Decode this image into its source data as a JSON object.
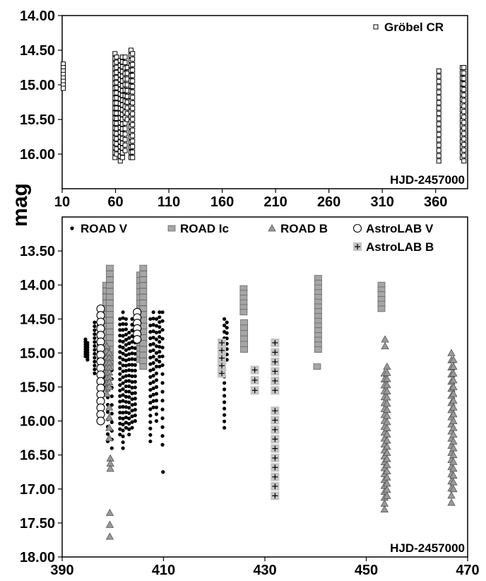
{
  "ylabel": "mag",
  "chart_data": [
    {
      "type": "scatter",
      "xlabel": "HJD-2457000",
      "xlim": [
        10,
        390
      ],
      "ylim": [
        14.0,
        16.5
      ],
      "y_inverted": true,
      "xticks": [
        "10",
        "60",
        "110",
        "160",
        "210",
        "260",
        "310",
        "360"
      ],
      "yticks": [
        "14.00",
        "14.50",
        "15.00",
        "15.50",
        "16.00"
      ],
      "legend_position": "top-right",
      "series": [
        {
          "name": "Gröbel CR",
          "marker": "open-square",
          "color": "#000000",
          "groups": [
            {
              "x": 11,
              "y_from": 14.7,
              "y_to": 15.05,
              "n": 8
            },
            {
              "x": 59.5,
              "y_from": 14.55,
              "y_to": 16.05,
              "n": 22
            },
            {
              "x": 61,
              "y_from": 14.6,
              "y_to": 16.0,
              "n": 20
            },
            {
              "x": 64.5,
              "y_from": 14.65,
              "y_to": 16.1,
              "n": 22
            },
            {
              "x": 66.5,
              "y_from": 14.6,
              "y_to": 16.05,
              "n": 22
            },
            {
              "x": 69,
              "y_from": 14.6,
              "y_to": 15.95,
              "n": 18
            },
            {
              "x": 71,
              "y_from": 14.75,
              "y_to": 15.5,
              "n": 10
            },
            {
              "x": 74.5,
              "y_from": 14.5,
              "y_to": 16.05,
              "n": 22
            },
            {
              "x": 76,
              "y_from": 14.55,
              "y_to": 16.05,
              "n": 20
            },
            {
              "x": 363,
              "y_from": 14.8,
              "y_to": 16.1,
              "n": 18
            },
            {
              "x": 385,
              "y_from": 14.75,
              "y_to": 16.05,
              "n": 18
            },
            {
              "x": 386.5,
              "y_from": 14.75,
              "y_to": 16.1,
              "n": 18
            }
          ]
        }
      ]
    },
    {
      "type": "scatter",
      "xlabel": "HJD-2457000",
      "xlim": [
        390,
        470
      ],
      "ylim": [
        13.0,
        18.0
      ],
      "y_inverted": true,
      "xticks": [
        "390",
        "410",
        "430",
        "450",
        "470"
      ],
      "yticks": [
        "13.50",
        "14.00",
        "14.50",
        "15.00",
        "15.50",
        "16.00",
        "16.50",
        "17.00",
        "17.50",
        "18.00"
      ],
      "legend_position": "top",
      "series": [
        {
          "name": "ROAD V",
          "marker": "filled-circle",
          "color": "#000000",
          "groups": [
            {
              "x": 394.6,
              "y_from": 14.8,
              "y_to": 15.05,
              "n": 8
            },
            {
              "x": 395.0,
              "y_from": 14.85,
              "y_to": 15.1,
              "n": 8
            },
            {
              "x": 396.4,
              "y_from": 14.55,
              "y_to": 15.3,
              "n": 14
            },
            {
              "x": 397.2,
              "y_from": 14.6,
              "y_to": 15.2,
              "n": 12
            },
            {
              "x": 398.2,
              "y_from": 14.6,
              "y_to": 15.5,
              "n": 14
            },
            {
              "x": 399.0,
              "y_from": 14.9,
              "y_to": 16.3,
              "n": 14
            },
            {
              "x": 399.8,
              "y_from": 15.0,
              "y_to": 16.4,
              "n": 12
            },
            {
              "x": 401.4,
              "y_from": 14.5,
              "y_to": 16.2,
              "n": 22
            },
            {
              "x": 402.0,
              "y_from": 14.4,
              "y_to": 16.4,
              "n": 24
            },
            {
              "x": 402.6,
              "y_from": 14.5,
              "y_to": 16.1,
              "n": 22
            },
            {
              "x": 403.2,
              "y_from": 14.7,
              "y_to": 16.2,
              "n": 20
            },
            {
              "x": 403.8,
              "y_from": 14.5,
              "y_to": 16.1,
              "n": 20
            },
            {
              "x": 404.4,
              "y_from": 14.6,
              "y_to": 16.0,
              "n": 18
            },
            {
              "x": 405.0,
              "y_from": 14.5,
              "y_to": 15.0,
              "n": 10
            },
            {
              "x": 405.6,
              "y_from": 14.5,
              "y_to": 15.1,
              "n": 10
            },
            {
              "x": 406.4,
              "y_from": 14.5,
              "y_to": 15.1,
              "n": 10
            },
            {
              "x": 407.4,
              "y_from": 14.5,
              "y_to": 16.3,
              "n": 20
            },
            {
              "x": 408.0,
              "y_from": 14.4,
              "y_to": 15.8,
              "n": 16
            },
            {
              "x": 408.6,
              "y_from": 14.5,
              "y_to": 16.0,
              "n": 16
            },
            {
              "x": 409.2,
              "y_from": 14.4,
              "y_to": 15.2,
              "n": 12
            },
            {
              "x": 409.8,
              "y_from": 14.4,
              "y_to": 16.35,
              "n": 16
            },
            {
              "x": 409.9,
              "y_from": 16.75,
              "y_to": 16.75,
              "n": 1
            },
            {
              "x": 422.0,
              "y_from": 14.5,
              "y_to": 16.1,
              "n": 18
            },
            {
              "x": 422.5,
              "y_from": 14.55,
              "y_to": 15.1,
              "n": 8
            }
          ]
        },
        {
          "name": "ROAD Ic",
          "marker": "gray-square",
          "color": "#a0a0a0",
          "groups": [
            {
              "x": 398.7,
              "y_from": 14.0,
              "y_to": 15.3,
              "n": 16
            },
            {
              "x": 399.4,
              "y_from": 13.75,
              "y_to": 15.2,
              "n": 18
            },
            {
              "x": 405.4,
              "y_from": 13.85,
              "y_to": 15.1,
              "n": 16
            },
            {
              "x": 406.0,
              "y_from": 13.75,
              "y_to": 15.2,
              "n": 18
            },
            {
              "x": 425.8,
              "y_from": 14.05,
              "y_to": 14.4,
              "n": 6
            },
            {
              "x": 425.9,
              "y_from": 14.55,
              "y_to": 14.95,
              "n": 6
            },
            {
              "x": 440.5,
              "y_from": 13.9,
              "y_to": 14.95,
              "n": 16
            },
            {
              "x": 440.3,
              "y_from": 15.2,
              "y_to": 15.2,
              "n": 1
            },
            {
              "x": 453.0,
              "y_from": 14.0,
              "y_to": 14.35,
              "n": 6
            }
          ]
        },
        {
          "name": "ROAD B",
          "marker": "gray-triangle",
          "color": "#909090",
          "groups": [
            {
              "x": 398.8,
              "y_from": 14.9,
              "y_to": 15.6,
              "n": 10
            },
            {
              "x": 399.3,
              "y_from": 15.0,
              "y_to": 15.5,
              "n": 8
            },
            {
              "x": 399.3,
              "y_from": 15.8,
              "y_to": 16.25,
              "n": 4
            },
            {
              "x": 399.5,
              "y_from": 16.55,
              "y_to": 16.7,
              "n": 3
            },
            {
              "x": 399.4,
              "y_from": 17.35,
              "y_to": 17.7,
              "n": 3
            },
            {
              "x": 453.6,
              "y_from": 15.3,
              "y_to": 17.3,
              "n": 24
            },
            {
              "x": 454.1,
              "y_from": 15.2,
              "y_to": 17.1,
              "n": 22
            },
            {
              "x": 453.7,
              "y_from": 14.8,
              "y_to": 14.9,
              "n": 2
            },
            {
              "x": 466.8,
              "y_from": 15.0,
              "y_to": 17.2,
              "n": 22
            },
            {
              "x": 467.2,
              "y_from": 15.1,
              "y_to": 17.0,
              "n": 20
            }
          ]
        },
        {
          "name": "AstroLAB V",
          "marker": "open-circle",
          "color": "#000000",
          "groups": [
            {
              "x": 397.6,
              "y_from": 14.35,
              "y_to": 16.0,
              "n": 18
            },
            {
              "x": 404.8,
              "y_from": 14.4,
              "y_to": 14.8,
              "n": 6
            }
          ]
        },
        {
          "name": "AstroLAB B",
          "marker": "gray-plus",
          "color": "#c0c0c0",
          "groups": [
            {
              "x": 421.5,
              "y_from": 14.85,
              "y_to": 15.3,
              "n": 5
            },
            {
              "x": 428.0,
              "y_from": 15.25,
              "y_to": 15.55,
              "n": 3
            },
            {
              "x": 432.0,
              "y_from": 14.85,
              "y_to": 15.55,
              "n": 6
            },
            {
              "x": 432.0,
              "y_from": 15.85,
              "y_to": 17.1,
              "n": 10
            }
          ]
        }
      ]
    }
  ]
}
